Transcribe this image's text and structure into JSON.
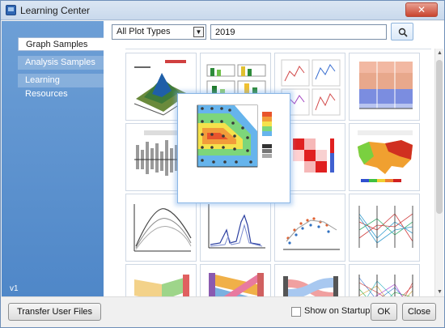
{
  "window": {
    "title": "Learning Center",
    "close_glyph": "✕"
  },
  "sidebar": {
    "items": [
      {
        "label": "Graph Samples",
        "active": true
      },
      {
        "label": "Analysis Samples",
        "active": false
      },
      {
        "label": "Learning Resources",
        "active": false
      }
    ],
    "version": "v1"
  },
  "filter": {
    "selected": "All Plot Types",
    "arrow": "▼"
  },
  "search": {
    "value": "2019",
    "icon": "search-icon"
  },
  "gallery": {
    "preview_kind": "contour-map",
    "thumbnails": [
      {
        "kind": "3d-surface"
      },
      {
        "kind": "bar-panels"
      },
      {
        "kind": "scatter-matrix"
      },
      {
        "kind": "stacked-area"
      },
      {
        "kind": "bar-histogram"
      },
      {
        "kind": "contour-map"
      },
      {
        "kind": "heatmap"
      },
      {
        "kind": "choropleth-map"
      },
      {
        "kind": "line-curves"
      },
      {
        "kind": "spectrum-peaks"
      },
      {
        "kind": "scatter-line"
      },
      {
        "kind": "parallel-coords"
      },
      {
        "kind": "parallel-sets"
      },
      {
        "kind": "alluvial"
      },
      {
        "kind": "sankey"
      },
      {
        "kind": "parallel-dense"
      }
    ]
  },
  "footer": {
    "transfer_label": "Transfer User Files",
    "startup_label": "Show on Startup",
    "startup_checked": false,
    "ok_label": "OK",
    "close_label": "Close"
  },
  "scroll": {
    "up": "▲",
    "down": "▼"
  }
}
